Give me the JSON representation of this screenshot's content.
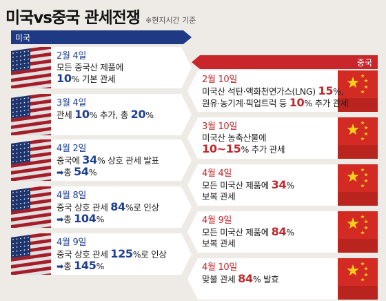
{
  "header": {
    "title": "미국vs중국 관세전쟁",
    "note": "※현지시간 기준"
  },
  "us": {
    "label": "미국",
    "events": [
      {
        "date": "2월 4일",
        "line1": "모든 중국산 제품에",
        "l2_num": "10",
        "l2_after": "% 기본 관세"
      },
      {
        "date": "3월 4일",
        "l1_before": "관세 ",
        "l1_num1": "10",
        "l1_mid": "% 추가, 총 ",
        "l1_num2": "20",
        "l1_after": "%"
      },
      {
        "date": "4월 2일",
        "l1_before": "중국에 ",
        "l1_num": "34",
        "l1_after": "% 상호 관세 발표",
        "l2_arrow": "➡",
        "l2_before": "총 ",
        "l2_num": "54",
        "l2_after": "%"
      },
      {
        "date": "4월 8일",
        "l1_before": "중국 상호 관세 ",
        "l1_num": "84",
        "l1_after": "%로 인상",
        "l2_arrow": "➡",
        "l2_before": "총 ",
        "l2_num": "104",
        "l2_after": "%"
      },
      {
        "date": "4월 9일",
        "l1_before": "중국 상호 관세 ",
        "l1_num": "125",
        "l1_after": "%로 인상",
        "l2_arrow": "➡",
        "l2_before": "총 ",
        "l2_num": "145",
        "l2_after": "%"
      }
    ]
  },
  "cn": {
    "label": "중국",
    "events": [
      {
        "date": "2월 10일",
        "l1_before": "미국산 석탄·액화천연가스(LNG) ",
        "l1_num": "15",
        "l1_after": "%,",
        "l2_before": "원유·농기계·픽업트럭 등 ",
        "l2_num": "10",
        "l2_after": "% 추가 관세"
      },
      {
        "date": "3월 10일",
        "line1": "미국산 농축산물에",
        "l2_num": "10~15",
        "l2_after": "% 추가 관세"
      },
      {
        "date": "4월 4일",
        "l1_before": "모든 미국산 제품에 ",
        "l1_num": "34",
        "l1_after": "%",
        "line2": "보복 관세"
      },
      {
        "date": "4월 9일",
        "l1_before": "모든 미국산 제품에 ",
        "l1_num": "84",
        "l1_after": "%",
        "line2": "보복 관세"
      },
      {
        "date": "4월 10일",
        "l1_before": "맞불 관세 ",
        "l1_num": "84",
        "l1_after": "% 발효"
      }
    ]
  },
  "colors": {
    "us_blue": "#1e3f91",
    "cn_red": "#c0262b",
    "background": "#eeeae5"
  },
  "icons": {
    "us_flag": "us-flag-icon",
    "cn_flag": "china-flag-icon"
  }
}
